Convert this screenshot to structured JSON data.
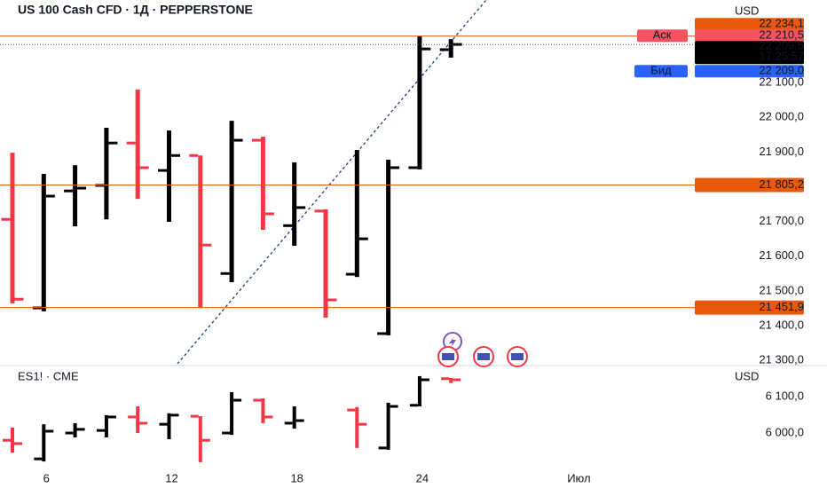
{
  "chart_data": [
    {
      "type": "ohlc",
      "title": "US 100 Cash CFD · 1Д · PEPPERSTONE",
      "currency": "USD",
      "up_color": "#000000",
      "down_color": "#f23645",
      "open": [
        21706,
        21451,
        21788,
        21804,
        21926,
        21847,
        21890,
        21550,
        21934,
        21688,
        21730,
        21548,
        21377,
        21855,
        22195,
        null,
        null,
        null,
        null
      ],
      "high": [
        21898,
        21837,
        21862,
        21970,
        22080,
        21962,
        21890,
        21990,
        21944,
        21870,
        21735,
        21906,
        21878,
        22234,
        22225,
        null,
        null,
        null,
        null
      ],
      "low": [
        21464,
        21441,
        21686,
        21706,
        21765,
        21699,
        21451,
        21525,
        21676,
        21630,
        21423,
        21540,
        21372,
        21850,
        22172,
        null,
        null,
        null,
        null
      ],
      "close": [
        21476,
        21773,
        21796,
        21926,
        21855,
        21890,
        21632,
        21934,
        21722,
        21740,
        21474,
        21650,
        21855,
        22197,
        22210,
        null,
        null,
        null,
        null
      ],
      "ylim": [
        21290,
        22338
      ],
      "yticks": [
        {
          "value": 21300,
          "label": "21 300,0"
        },
        {
          "value": 21400,
          "label": "21 400,0"
        },
        {
          "value": 21500,
          "label": "21 500,0"
        },
        {
          "value": 21600,
          "label": "21 600,0"
        },
        {
          "value": 21700,
          "label": "21 700,0"
        },
        {
          "value": 21900,
          "label": "21 900,0"
        },
        {
          "value": 22000,
          "label": "22 000,0"
        },
        {
          "value": 22100,
          "label": "22 100,0"
        }
      ],
      "high_label": {
        "value": 22234.1,
        "label": "22 234,1"
      },
      "ask": {
        "name": "Аск",
        "value": 22210.5,
        "label": "22 210,5"
      },
      "last": {
        "value": 22209.5,
        "label": "22 209,5",
        "countdown": "17:25:57"
      },
      "bid": {
        "name": "Бид",
        "value": 22209.0,
        "label": "22 209,0"
      },
      "levels": [
        {
          "value": 21805.2,
          "label": "21 805,2"
        },
        {
          "value": 21451.9,
          "label": "21 451,9"
        }
      ],
      "level_color": "#e8590c"
    },
    {
      "type": "ohlc",
      "title": "ES1! · CME",
      "currency": "USD",
      "up_color": "#000000",
      "down_color": "#f23645",
      "categories": [
        null,
        "6",
        null,
        null,
        null,
        "12",
        null,
        null,
        null,
        "18",
        null,
        null,
        null,
        "24",
        null,
        null,
        null,
        null,
        "Июл"
      ],
      "open": [
        5980,
        5929,
        6000,
        6007,
        6044,
        6024,
        6046,
        6000,
        6090,
        6027,
        null,
        6063,
        5959,
        6076,
        6149,
        null,
        null,
        null,
        null
      ],
      "high": [
        6015,
        6024,
        6027,
        6049,
        6073,
        6054,
        6046,
        6112,
        6095,
        6073,
        null,
        6071,
        6083,
        6156,
        6151,
        null,
        null,
        null,
        null
      ],
      "low": [
        5946,
        5922,
        5988,
        5988,
        6000,
        5983,
        5920,
        5995,
        6027,
        6012,
        null,
        5959,
        5954,
        6073,
        6137,
        null,
        null,
        null,
        null
      ],
      "close": [
        5971,
        6005,
        6010,
        6044,
        6027,
        6049,
        5980,
        6090,
        6044,
        6034,
        null,
        6024,
        6073,
        6146,
        6146,
        null,
        null,
        null,
        null
      ],
      "ylim": [
        5910,
        6185
      ],
      "yticks": [
        {
          "value": 6000,
          "label": "6 000,0"
        },
        {
          "value": 6100,
          "label": "6 100,0"
        }
      ]
    }
  ]
}
